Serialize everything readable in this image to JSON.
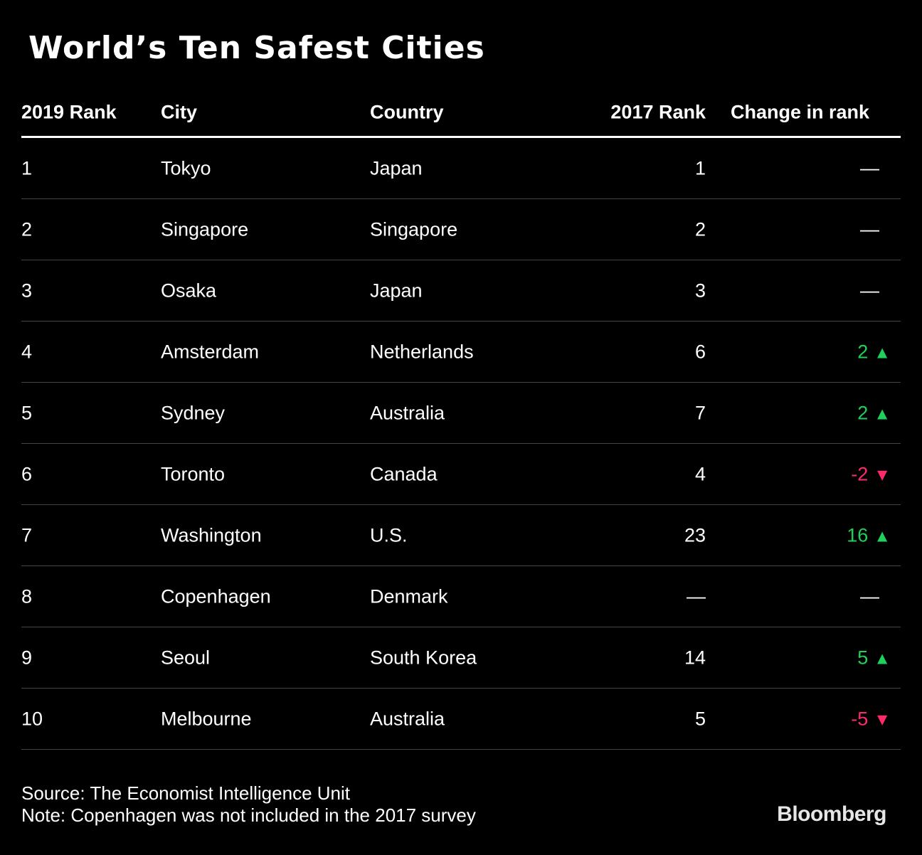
{
  "chart_data": {
    "type": "table",
    "title": "World’s Ten Safest Cities",
    "columns": [
      "2019 Rank",
      "City",
      "Country",
      "2017 Rank",
      "Change in rank"
    ],
    "rows": [
      {
        "rank2019": "1",
        "city": "Tokyo",
        "country": "Japan",
        "rank2017": "1",
        "change": "—",
        "dir": "none"
      },
      {
        "rank2019": "2",
        "city": "Singapore",
        "country": "Singapore",
        "rank2017": "2",
        "change": "—",
        "dir": "none"
      },
      {
        "rank2019": "3",
        "city": "Osaka",
        "country": "Japan",
        "rank2017": "3",
        "change": "—",
        "dir": "none"
      },
      {
        "rank2019": "4",
        "city": "Amsterdam",
        "country": "Netherlands",
        "rank2017": "6",
        "change": "2",
        "dir": "up"
      },
      {
        "rank2019": "5",
        "city": "Sydney",
        "country": "Australia",
        "rank2017": "7",
        "change": "2",
        "dir": "up"
      },
      {
        "rank2019": "6",
        "city": "Toronto",
        "country": "Canada",
        "rank2017": "4",
        "change": "-2",
        "dir": "down"
      },
      {
        "rank2019": "7",
        "city": "Washington",
        "country": "U.S.",
        "rank2017": "23",
        "change": "16",
        "dir": "up"
      },
      {
        "rank2019": "8",
        "city": "Copenhagen",
        "country": "Denmark",
        "rank2017": "—",
        "change": "—",
        "dir": "none"
      },
      {
        "rank2019": "9",
        "city": "Seoul",
        "country": "South Korea",
        "rank2017": "14",
        "change": "5",
        "dir": "up"
      },
      {
        "rank2019": "10",
        "city": "Melbourne",
        "country": "Australia",
        "rank2017": "5",
        "change": "-5",
        "dir": "down"
      }
    ],
    "colors": {
      "up": "#1fd15a",
      "down": "#ff2a6a"
    }
  },
  "footer": {
    "source": "Source: The Economist Intelligence Unit",
    "note": "Note: Copenhagen was not included in the 2017 survey",
    "logo": "Bloomberg"
  }
}
